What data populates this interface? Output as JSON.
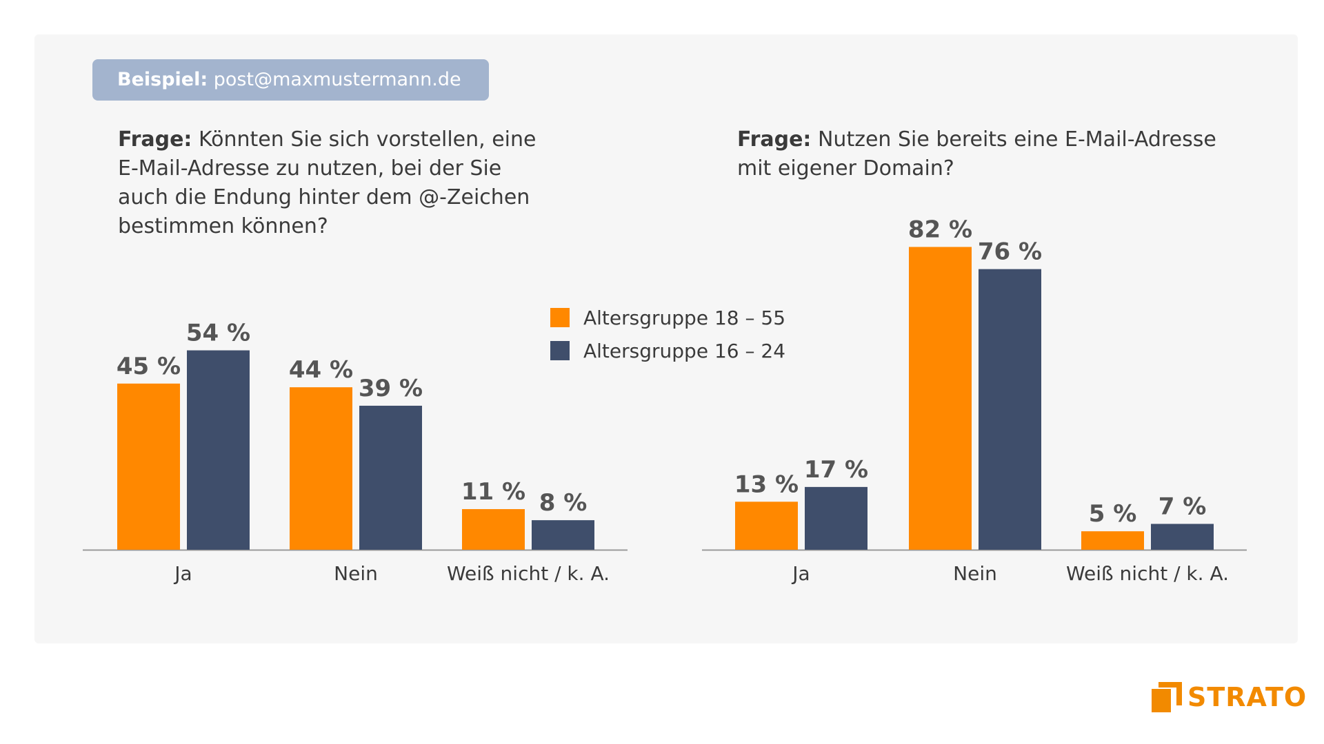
{
  "example": {
    "label": "Beispiel:",
    "value": "post@maxmustermann.de"
  },
  "legend": [
    {
      "name": "Altersgruppe 18 – 55",
      "color": "#ff8800"
    },
    {
      "name": "Altersgruppe 16 – 24",
      "color": "#3f4e6b"
    }
  ],
  "brand": {
    "name": "STRATO",
    "color": "#f28a00"
  },
  "chart_data": [
    {
      "type": "bar",
      "question_label": "Frage:",
      "question_lines": [
        "Könnten Sie sich vorstellen, eine",
        "E-Mail-Adresse zu nutzen, bei der Sie",
        "auch die Endung hinter dem @-Zeichen",
        "bestimmen können?"
      ],
      "categories": [
        "Ja",
        "Nein",
        "Weiß nicht / k. A."
      ],
      "series": [
        {
          "name": "Altersgruppe 18 – 55",
          "values": [
            45,
            44,
            11
          ],
          "labels": [
            "45 %",
            "44 %",
            "11 %"
          ],
          "color": "#ff8800"
        },
        {
          "name": "Altersgruppe 16 – 24",
          "values": [
            54,
            39,
            8
          ],
          "labels": [
            "54 %",
            "39 %",
            "8 %"
          ],
          "color": "#3f4e6b"
        }
      ],
      "ylim": [
        0,
        100
      ],
      "grid": false,
      "legend_position": "center"
    },
    {
      "type": "bar",
      "question_label": "Frage:",
      "question_lines": [
        "Nutzen Sie bereits eine E-Mail-Adresse",
        "mit eigener Domain?"
      ],
      "categories": [
        "Ja",
        "Nein",
        "Weiß nicht / k. A."
      ],
      "series": [
        {
          "name": "Altersgruppe 18 – 55",
          "values": [
            13,
            82,
            5
          ],
          "labels": [
            "13 %",
            "82 %",
            "5 %"
          ],
          "color": "#ff8800"
        },
        {
          "name": "Altersgruppe 16 – 24",
          "values": [
            17,
            76,
            7
          ],
          "labels": [
            "17 %",
            "76 %",
            "7 %"
          ],
          "color": "#3f4e6b"
        }
      ],
      "ylim": [
        0,
        100
      ],
      "grid": false,
      "legend_position": "center"
    }
  ]
}
